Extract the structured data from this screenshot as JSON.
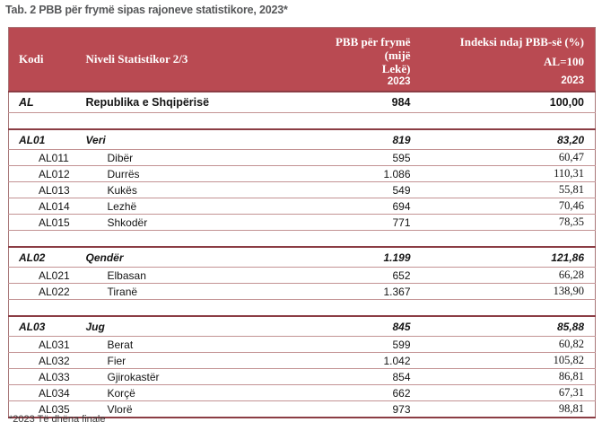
{
  "title": "Tab. 2 PBB për frymë sipas rajoneve statistikore, 2023*",
  "footnote": "*2023 Të dhëna finale",
  "colors": {
    "header_bg": "#b94a52",
    "border_light": "#c39394",
    "border_dark": "#8b3d44",
    "title_color": "#57585a"
  },
  "table": {
    "header": {
      "col_code": "Kodi",
      "col_name": "Niveli Statistikor 2/3",
      "col_value_line1": "PBB për frymë (mijë",
      "col_value_line2": "Lekë)",
      "col_index": "Indeksi ndaj PBB-së (%)",
      "col_index_sub": "AL=100",
      "year_value": "2023",
      "year_index": "2023"
    },
    "rows": [
      {
        "type": "total",
        "code": "AL",
        "name": "Republika e Shqipërisë",
        "value": "984",
        "index": "100,00"
      },
      {
        "type": "spacer"
      },
      {
        "type": "section",
        "code": "AL01",
        "name": "Veri",
        "value": "819",
        "index": "83,20"
      },
      {
        "type": "sub",
        "code": "AL011",
        "name": "Dibër",
        "value": "595",
        "index": "60,47"
      },
      {
        "type": "sub",
        "code": "AL012",
        "name": "Durrës",
        "value": "1.086",
        "index": "110,31"
      },
      {
        "type": "sub",
        "code": "AL013",
        "name": "Kukës",
        "value": "549",
        "index": "55,81"
      },
      {
        "type": "sub",
        "code": "AL014",
        "name": "Lezhë",
        "value": "694",
        "index": "70,46"
      },
      {
        "type": "sub",
        "code": "AL015",
        "name": "Shkodër",
        "value": "771",
        "index": "78,35"
      },
      {
        "type": "spacer"
      },
      {
        "type": "section",
        "code": "AL02",
        "name": "Qendër",
        "value": "1.199",
        "index": "121,86"
      },
      {
        "type": "sub",
        "code": "AL021",
        "name": "Elbasan",
        "value": "652",
        "index": "66,28"
      },
      {
        "type": "sub",
        "code": "AL022",
        "name": "Tiranë",
        "value": "1.367",
        "index": "138,90"
      },
      {
        "type": "spacer"
      },
      {
        "type": "section",
        "code": "AL03",
        "name": "Jug",
        "value": "845",
        "index": "85,88"
      },
      {
        "type": "sub",
        "code": "AL031",
        "name": "Berat",
        "value": "599",
        "index": "60,82"
      },
      {
        "type": "sub",
        "code": "AL032",
        "name": "Fier",
        "value": "1.042",
        "index": "105,82"
      },
      {
        "type": "sub",
        "code": "AL033",
        "name": "Gjirokastër",
        "value": "854",
        "index": "86,81"
      },
      {
        "type": "sub",
        "code": "AL034",
        "name": "Korçë",
        "value": "662",
        "index": "67,31"
      },
      {
        "type": "sub",
        "code": "AL035",
        "name": "Vlorë",
        "value": "973",
        "index": "98,81"
      }
    ]
  }
}
